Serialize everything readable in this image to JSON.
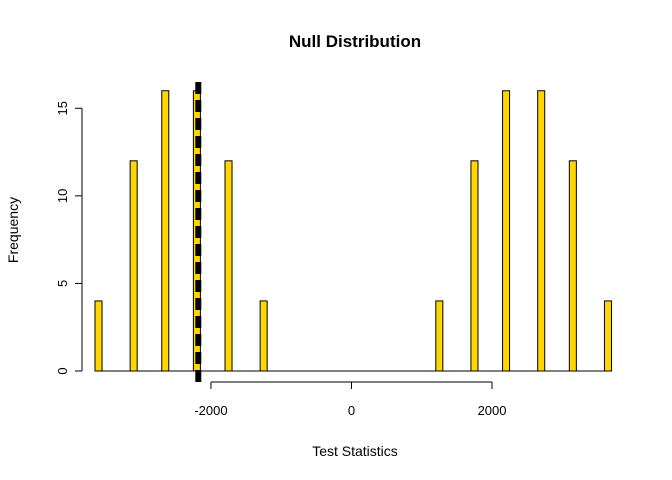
{
  "chart_data": {
    "type": "bar",
    "title": "Null Distribution",
    "xlabel": "Test Statistics",
    "ylabel": "Frequency",
    "xlim": [
      -3650,
      3750
    ],
    "ylim": [
      0,
      16.5
    ],
    "x_ticks": [
      -2000,
      0,
      2000
    ],
    "x_tick_labels": [
      "-2000",
      "0",
      "2000"
    ],
    "y_ticks": [
      0,
      5,
      10,
      15
    ],
    "y_tick_labels": [
      "0",
      "5",
      "10",
      "15"
    ],
    "bar_width": 100,
    "bars": [
      {
        "x": -3600,
        "value": 4
      },
      {
        "x": -3100,
        "value": 12
      },
      {
        "x": -2650,
        "value": 16
      },
      {
        "x": -2200,
        "value": 16
      },
      {
        "x": -1750,
        "value": 12
      },
      {
        "x": -1250,
        "value": 4
      },
      {
        "x": 1250,
        "value": 4
      },
      {
        "x": 1750,
        "value": 12
      },
      {
        "x": 2200,
        "value": 16
      },
      {
        "x": 2700,
        "value": 16
      },
      {
        "x": 3150,
        "value": 12
      },
      {
        "x": 3650,
        "value": 4
      }
    ],
    "observed_line": {
      "x": -2180,
      "style": "dashed",
      "color": "#000000"
    },
    "bar_color": "#FFD700",
    "bar_border_color": "#000000",
    "grid": false,
    "legend": "none"
  }
}
